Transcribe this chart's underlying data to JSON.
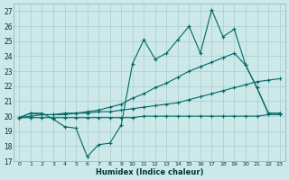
{
  "xlabel": "Humidex (Indice chaleur)",
  "bg_color": "#cce8e8",
  "grid_color": "#aacece",
  "line_color": "#006868",
  "xlim": [
    -0.5,
    23.5
  ],
  "ylim": [
    17,
    27.5
  ],
  "x": [
    0,
    1,
    2,
    3,
    4,
    5,
    6,
    7,
    8,
    9,
    10,
    11,
    12,
    13,
    14,
    15,
    16,
    17,
    18,
    19,
    20,
    21,
    22,
    23
  ],
  "line1": [
    19.9,
    20.2,
    20.2,
    19.8,
    19.3,
    19.2,
    17.3,
    18.1,
    18.2,
    19.4,
    23.5,
    25.1,
    23.8,
    24.2,
    25.1,
    26.0,
    24.2,
    27.1,
    25.3,
    25.8,
    23.4,
    21.9,
    20.2,
    20.2
  ],
  "line2": [
    19.9,
    20.2,
    20.1,
    20.1,
    20.1,
    20.2,
    20.3,
    20.4,
    20.6,
    20.8,
    21.2,
    21.5,
    21.9,
    22.2,
    22.6,
    23.0,
    23.3,
    23.6,
    23.9,
    24.2,
    23.4,
    21.9,
    20.2,
    20.2
  ],
  "line3": [
    19.9,
    20.0,
    20.1,
    20.1,
    20.2,
    20.2,
    20.2,
    20.3,
    20.3,
    20.4,
    20.5,
    20.6,
    20.7,
    20.8,
    20.9,
    21.1,
    21.3,
    21.5,
    21.7,
    21.9,
    22.1,
    22.3,
    22.4,
    22.5
  ],
  "line4": [
    19.9,
    19.9,
    19.9,
    19.9,
    19.9,
    19.9,
    19.9,
    19.9,
    19.9,
    19.9,
    19.9,
    20.0,
    20.0,
    20.0,
    20.0,
    20.0,
    20.0,
    20.0,
    20.0,
    20.0,
    20.0,
    20.0,
    20.1,
    20.1
  ]
}
